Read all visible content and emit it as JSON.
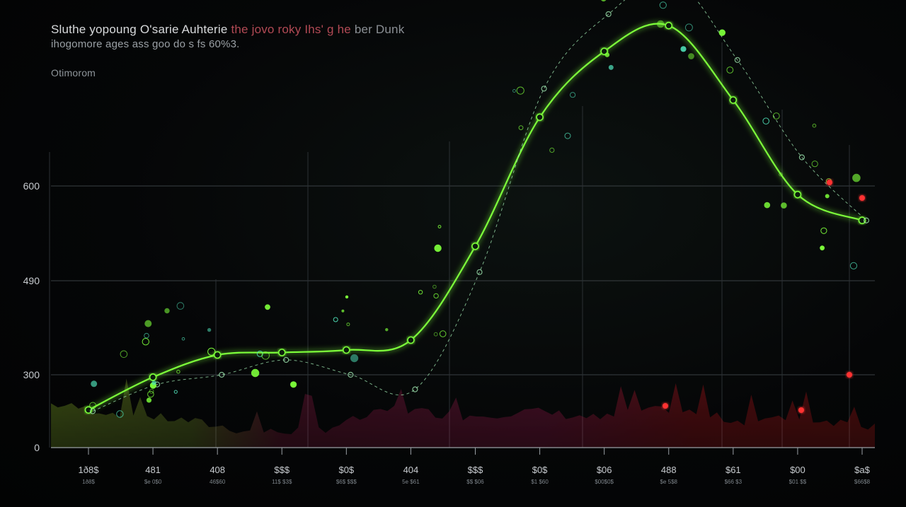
{
  "header": {
    "title_main": "Sluthe yopoung O'sarie Auhterie",
    "title_accent": "the jovo roky Ihs' g he",
    "title_tail": "ber Dunk",
    "subtitle": "ihogomore ages ass goo do s fs 60%3.",
    "caption": "Otimorom"
  },
  "chart_data": {
    "type": "line",
    "title": "Sluthe yopoung O'sarie Auhterie the jovo roky Ihs' g he ber Dunk",
    "y_ticks": [
      {
        "label": "0",
        "value": 0
      },
      {
        "label": "300",
        "value": 300
      },
      {
        "label": "490",
        "value": 490
      },
      {
        "label": "600",
        "value": 600
      }
    ],
    "ylim": [
      0,
      900
    ],
    "categories": [
      "1ð8$",
      "481",
      "408",
      "$$$",
      "$0$",
      "404",
      "$$$",
      "$0$",
      "$06",
      "488",
      "$61",
      "$00",
      "$a$"
    ],
    "category_sublabels": [
      "1ð8$",
      "$e 0$0",
      "46$60",
      "11$ $3$",
      "$6$ $$$",
      "5e $61",
      "$$ $06",
      "$1 $60",
      "$00$0$",
      "$e 5$8",
      "$66 $3",
      "$01 $$",
      "$66$8"
    ],
    "series": [
      {
        "values": [
          155,
          290,
          340,
          345,
          350,
          370,
          530,
          720,
          835,
          880,
          750,
          590,
          560
        ]
      },
      {
        "values": [
          150,
          260,
          300,
          330,
          300,
          240,
          500,
          770,
          900,
          960,
          820,
          650,
          560
        ]
      },
      {
        "values": [
          180,
          140,
          110,
          60,
          80,
          160,
          130,
          150,
          120,
          160,
          110,
          120,
          90
        ]
      }
    ],
    "grid": true,
    "colors": {
      "line": "#7dff3a",
      "dotted": "#9fe6b0",
      "volume_low": "#c0ff33",
      "volume_mid": "#d6245e",
      "volume_high": "#ff1020",
      "marker": "#ff3030"
    }
  }
}
